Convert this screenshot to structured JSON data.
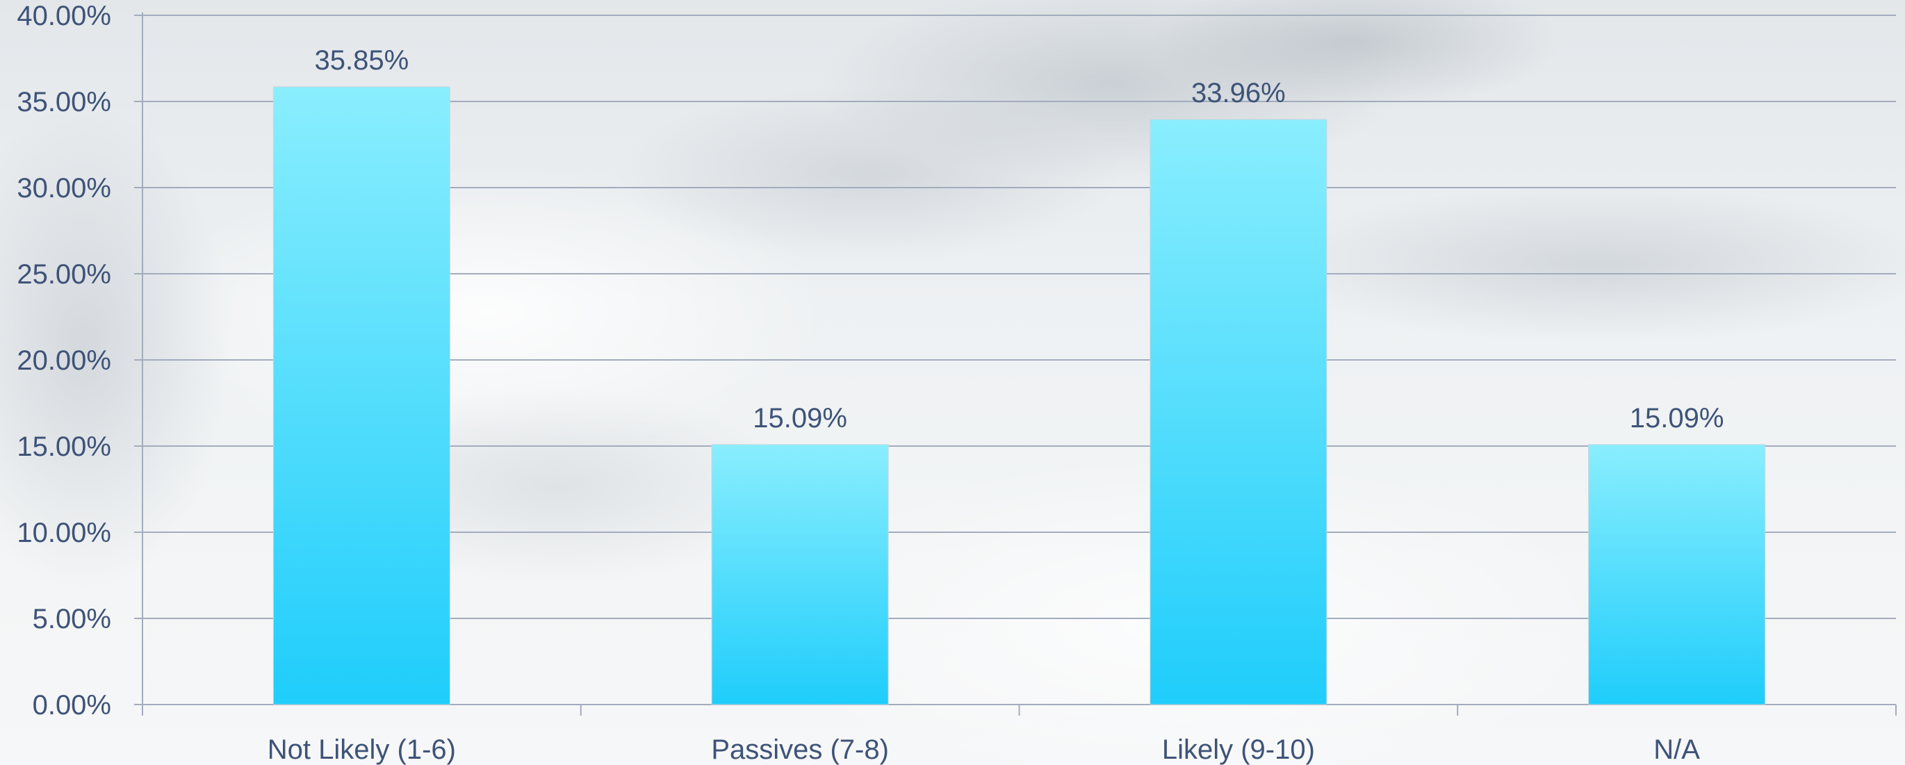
{
  "chart_data": {
    "type": "bar",
    "categories": [
      "Not Likely (1-6)",
      "Passives (7-8)",
      "Likely (9-10)",
      "N/A"
    ],
    "values": [
      35.85,
      15.09,
      33.96,
      15.09
    ],
    "data_labels": [
      "35.85%",
      "15.09%",
      "33.96%",
      "15.09%"
    ],
    "ylim": [
      0,
      40
    ],
    "y_ticks": [
      0,
      5,
      10,
      15,
      20,
      25,
      30,
      35,
      40
    ],
    "y_tick_labels": [
      "0.00%",
      "5.00%",
      "10.00%",
      "15.00%",
      "20.00%",
      "25.00%",
      "30.00%",
      "35.00%",
      "40.00%"
    ],
    "grid": true,
    "legend": "none",
    "bar_color_top": "#8aeefe",
    "bar_color_bottom": "#1fcdfb",
    "text_color": "#3e5378",
    "gridline_color": "#a3acbd"
  }
}
